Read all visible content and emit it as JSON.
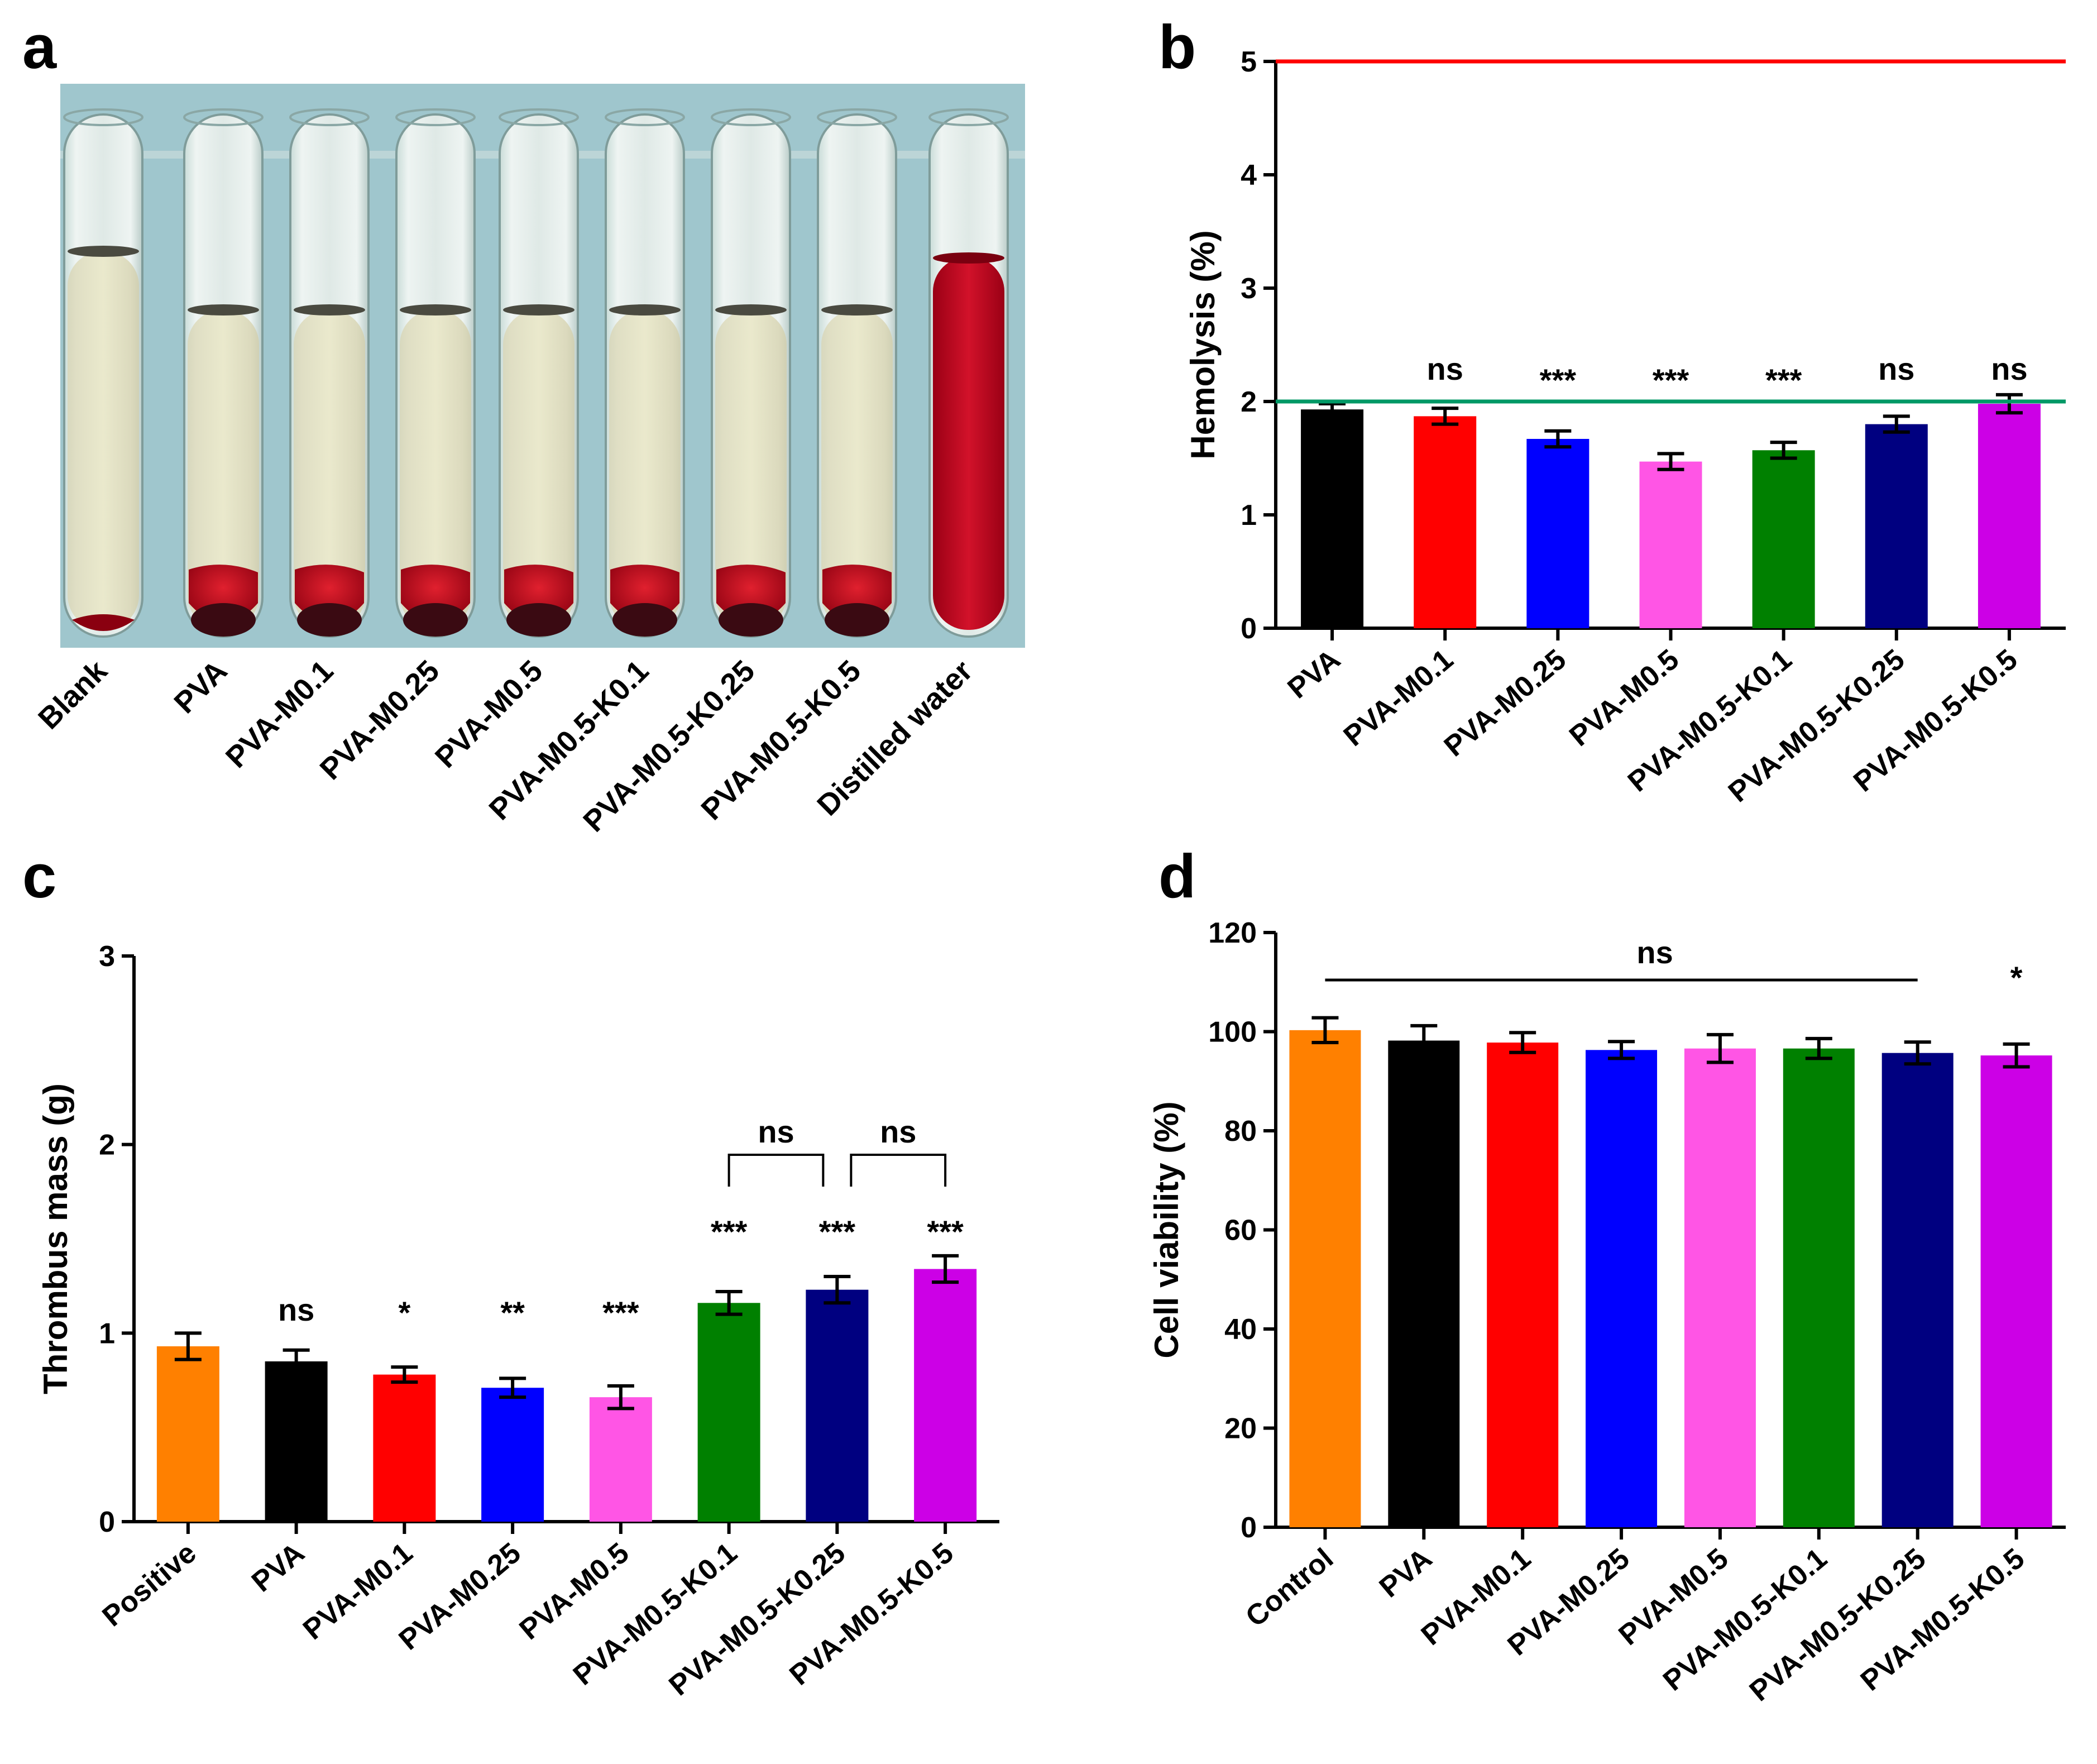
{
  "panels": {
    "a": "a",
    "b": "b",
    "c": "c",
    "d": "d"
  },
  "chart_data": [
    {
      "panel": "a",
      "type": "photo",
      "description_labels": [
        "Blank",
        "PVA",
        "PVA-M0.1",
        "PVA-M0.25",
        "PVA-M0.5",
        "PVA-M0.5-K0.1",
        "PVA-M0.5-K0.25",
        "PVA-M0.5-K0.5",
        "Distilled water"
      ]
    },
    {
      "panel": "b",
      "type": "bar",
      "title": "",
      "xlabel": "",
      "ylabel": "Hemolysis (%)",
      "ylim": [
        0,
        5
      ],
      "yticks": [
        0,
        1,
        2,
        3,
        4,
        5
      ],
      "categories": [
        "PVA",
        "PVA-M0.1",
        "PVA-M0.25",
        "PVA-M0.5",
        "PVA-M0.5-K0.1",
        "PVA-M0.5-K0.25",
        "PVA-M0.5-K0.5"
      ],
      "values": [
        1.93,
        1.87,
        1.67,
        1.47,
        1.57,
        1.8,
        1.98
      ],
      "errors": [
        0.05,
        0.07,
        0.07,
        0.07,
        0.07,
        0.07,
        0.08
      ],
      "colors": [
        "#000000",
        "#ff0000",
        "#0000ff",
        "#ff55e5",
        "#008000",
        "#000080",
        "#cc00e6"
      ],
      "significance": [
        "",
        "ns",
        "***",
        "***",
        "***",
        "ns",
        "ns"
      ],
      "reference_lines": [
        {
          "value": 5,
          "color": "#ff0000"
        },
        {
          "value": 2,
          "color": "#009966"
        }
      ]
    },
    {
      "panel": "c",
      "type": "bar",
      "title": "",
      "xlabel": "",
      "ylabel": "Thrombus mass (g)",
      "ylim": [
        0,
        3
      ],
      "yticks": [
        0,
        1,
        2,
        3
      ],
      "categories": [
        "Positive",
        "PVA",
        "PVA-M0.1",
        "PVA-M0.25",
        "PVA-M0.5",
        "PVA-M0.5-K0.1",
        "PVA-M0.5-K0.25",
        "PVA-M0.5-K0.5"
      ],
      "values": [
        0.93,
        0.85,
        0.78,
        0.71,
        0.66,
        1.16,
        1.23,
        1.34
      ],
      "errors": [
        0.07,
        0.06,
        0.04,
        0.05,
        0.06,
        0.06,
        0.07,
        0.07
      ],
      "colors": [
        "#ff8000",
        "#000000",
        "#ff0000",
        "#0000ff",
        "#ff55e5",
        "#008000",
        "#000080",
        "#cc00e6"
      ],
      "significance": [
        "",
        "ns",
        "*",
        "**",
        "***",
        "***",
        "***",
        "***"
      ],
      "brackets": [
        {
          "from": 5,
          "to": 6,
          "label": "ns"
        },
        {
          "from": 6,
          "to": 7,
          "label": "ns"
        }
      ]
    },
    {
      "panel": "d",
      "type": "bar",
      "title": "",
      "xlabel": "",
      "ylabel": "Cell viability (%)",
      "ylim": [
        0,
        120
      ],
      "yticks": [
        0,
        20,
        40,
        60,
        80,
        100,
        120
      ],
      "categories": [
        "Control",
        "PVA",
        "PVA-M0.1",
        "PVA-M0.25",
        "PVA-M0.5",
        "PVA-M0.5-K0.1",
        "PVA-M0.5-K0.25",
        "PVA-M0.5-K0.5"
      ],
      "values": [
        100.3,
        98.2,
        97.8,
        96.3,
        96.6,
        96.6,
        95.7,
        95.2
      ],
      "errors": [
        2.5,
        3.0,
        2.0,
        1.7,
        2.8,
        2.0,
        2.2,
        2.3
      ],
      "colors": [
        "#ff8000",
        "#000000",
        "#ff0000",
        "#0000ff",
        "#ff55e5",
        "#008000",
        "#000080",
        "#cc00e6"
      ],
      "significance": [
        "",
        "",
        "",
        "",
        "",
        "",
        "",
        "*"
      ],
      "span_line": {
        "from": 0,
        "to": 6,
        "label": "ns"
      }
    }
  ]
}
